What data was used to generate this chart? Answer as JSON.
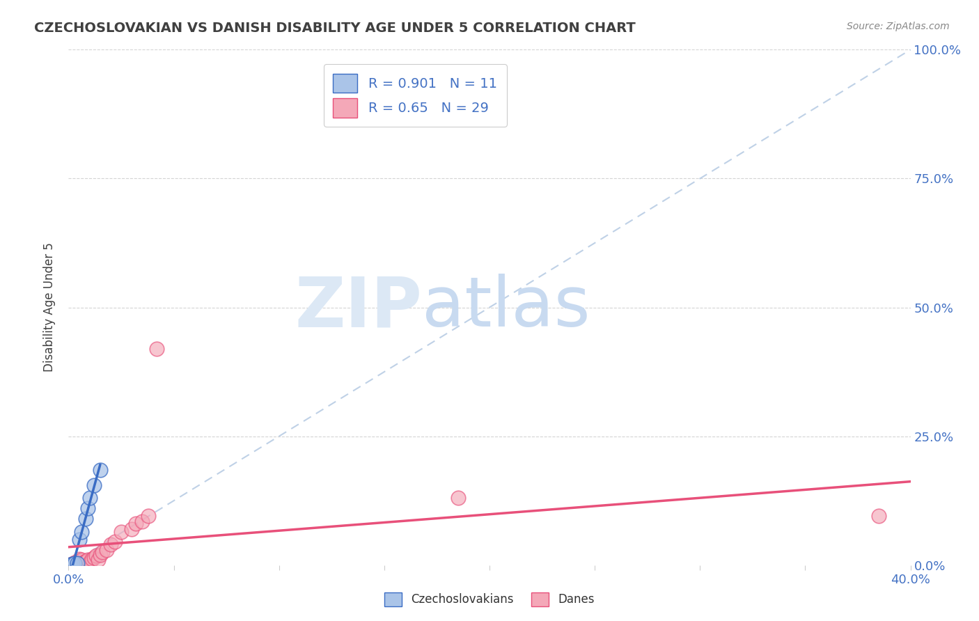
{
  "title": "CZECHOSLOVAKIAN VS DANISH DISABILITY AGE UNDER 5 CORRELATION CHART",
  "source_text": "Source: ZipAtlas.com",
  "ylabel": "Disability Age Under 5",
  "legend_bottom": [
    "Czechoslovakians",
    "Danes"
  ],
  "blue_R": 0.901,
  "blue_N": 11,
  "pink_R": 0.65,
  "pink_N": 29,
  "blue_scatter_x": [
    0.001,
    0.002,
    0.003,
    0.004,
    0.005,
    0.006,
    0.008,
    0.009,
    0.01,
    0.012,
    0.015
  ],
  "blue_scatter_y": [
    0.001,
    0.002,
    0.003,
    0.004,
    0.05,
    0.065,
    0.09,
    0.11,
    0.13,
    0.155,
    0.185
  ],
  "pink_scatter_x": [
    0.001,
    0.002,
    0.003,
    0.003,
    0.004,
    0.005,
    0.005,
    0.006,
    0.007,
    0.008,
    0.009,
    0.01,
    0.011,
    0.012,
    0.013,
    0.014,
    0.015,
    0.016,
    0.018,
    0.02,
    0.022,
    0.025,
    0.03,
    0.032,
    0.035,
    0.038,
    0.042,
    0.185,
    0.385
  ],
  "pink_scatter_y": [
    0.001,
    0.002,
    0.003,
    0.005,
    0.003,
    0.008,
    0.012,
    0.01,
    0.005,
    0.008,
    0.01,
    0.005,
    0.012,
    0.015,
    0.018,
    0.01,
    0.02,
    0.025,
    0.03,
    0.04,
    0.045,
    0.065,
    0.07,
    0.08,
    0.085,
    0.095,
    0.42,
    0.13,
    0.095
  ],
  "blue_color": "#aac4e8",
  "pink_color": "#f4a8b8",
  "blue_line_color": "#3a6cc4",
  "pink_line_color": "#e8507a",
  "diagonal_color": "#b8cce4",
  "background_color": "#ffffff",
  "grid_color": "#d0d0d0",
  "title_color": "#404040",
  "axis_label_color": "#4472c4",
  "legend_text_color": "#333333",
  "watermark_zip": "ZIP",
  "watermark_atlas": "atlas",
  "watermark_color_zip": "#dce8f5",
  "watermark_color_atlas": "#c8daf0",
  "x_max": 0.4,
  "y_max": 1.0
}
